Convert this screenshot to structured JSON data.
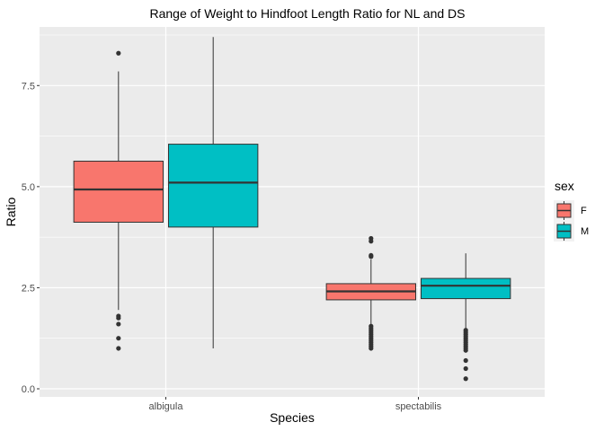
{
  "chart_data": {
    "type": "boxplot",
    "title": "Range of Weight to Hindfoot Length Ratio for NL and DS",
    "xlabel": "Species",
    "ylabel": "Ratio",
    "categories": [
      "albigula",
      "spectabilis"
    ],
    "y_ticks": [
      0.0,
      2.5,
      5.0,
      7.5
    ],
    "y_tick_labels": [
      "0.0",
      "2.5",
      "5.0",
      "7.5"
    ],
    "ylim": [
      -0.2,
      8.95
    ],
    "grid": true,
    "legend": {
      "title": "sex",
      "position": "right",
      "entries": [
        {
          "label": "F",
          "color": "#F8766D"
        },
        {
          "label": "M",
          "color": "#00BFC4"
        }
      ]
    },
    "series": [
      {
        "name": "F",
        "color": "#F8766D",
        "boxes": [
          {
            "category": "albigula",
            "min": 1.95,
            "q1": 4.12,
            "median": 4.93,
            "q3": 5.63,
            "max": 7.85,
            "outliers": [
              8.3,
              1.8,
              1.75,
              1.6,
              1.25,
              1.0
            ]
          },
          {
            "category": "spectabilis",
            "min": 1.6,
            "q1": 2.2,
            "median": 2.41,
            "q3": 2.6,
            "max": 3.2,
            "outliers": [
              3.72,
              3.65,
              3.3,
              3.27,
              1.55,
              1.5,
              1.45,
              1.4,
              1.35,
              1.3,
              1.25,
              1.2,
              1.15,
              1.1,
              1.05,
              1.0
            ]
          }
        ]
      },
      {
        "name": "M",
        "color": "#00BFC4",
        "boxes": [
          {
            "category": "albigula",
            "min": 1.0,
            "q1": 4.0,
            "median": 5.1,
            "q3": 6.05,
            "max": 8.7,
            "outliers": []
          },
          {
            "category": "spectabilis",
            "min": 1.5,
            "q1": 2.23,
            "median": 2.55,
            "q3": 2.73,
            "max": 3.35,
            "outliers": [
              1.45,
              1.4,
              1.35,
              1.3,
              1.25,
              1.2,
              1.15,
              1.1,
              1.05,
              1.0,
              0.95,
              0.7,
              0.5,
              0.25
            ]
          }
        ]
      }
    ]
  }
}
